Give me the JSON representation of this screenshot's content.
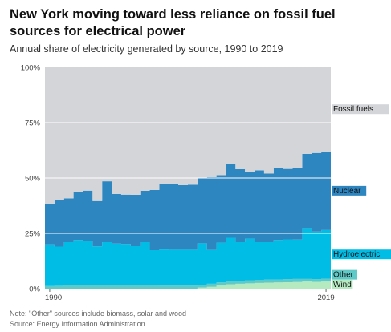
{
  "header": {
    "title": "New York moving toward less reliance on fossil fuel sources for electrical power",
    "subtitle": "Annual share of electricity generated by source, 1990 to 2019"
  },
  "footer": {
    "note": "Note: \"Other\" sources include biomass, solar and wood",
    "source": "Source: Energy Information Administration"
  },
  "colors": {
    "fossil": "#d4d5d8",
    "nuclear": "#2e86c1",
    "hydro": "#00bde6",
    "other": "#5ec9c6",
    "wind": "#b5e9c0"
  },
  "chart_data": {
    "type": "area",
    "stacking": "step",
    "x": [
      1990,
      1991,
      1992,
      1993,
      1994,
      1995,
      1996,
      1997,
      1998,
      1999,
      2000,
      2001,
      2002,
      2003,
      2004,
      2005,
      2006,
      2007,
      2008,
      2009,
      2010,
      2011,
      2012,
      2013,
      2014,
      2015,
      2016,
      2017,
      2018,
      2019
    ],
    "ylim": [
      0,
      100
    ],
    "y_ticks": [
      "0%",
      "25%",
      "50%",
      "75%",
      "100%"
    ],
    "x_tick_labels": [
      "1990",
      "2019"
    ],
    "series": [
      {
        "name": "Wind",
        "key": "wind",
        "values": [
          0,
          0,
          0,
          0,
          0,
          0,
          0,
          0,
          0,
          0,
          0,
          0,
          0,
          0,
          0,
          0,
          0.5,
          0.8,
          1.4,
          2.0,
          2.2,
          2.4,
          2.6,
          2.7,
          2.8,
          2.9,
          3.0,
          3.2,
          3.1,
          3.2
        ]
      },
      {
        "name": "Other",
        "key": "other",
        "values": [
          1.2,
          1.3,
          1.5,
          1.5,
          1.6,
          1.5,
          1.6,
          1.5,
          1.5,
          1.6,
          1.5,
          1.5,
          1.4,
          1.4,
          1.4,
          1.4,
          1.3,
          1.4,
          1.4,
          1.3,
          1.3,
          1.4,
          1.4,
          1.4,
          1.3,
          1.4,
          1.4,
          1.2,
          1.2,
          1.3
        ]
      },
      {
        "name": "Hydroelectric",
        "key": "hydro",
        "values": [
          18.8,
          17.7,
          19.5,
          20.5,
          19.9,
          17.6,
          19.4,
          18.9,
          18.7,
          17.6,
          19.5,
          15.9,
          16.3,
          16.2,
          16.2,
          16.2,
          18.7,
          15.3,
          18.0,
          19.7,
          17.5,
          18.8,
          17.0,
          16.9,
          17.9,
          18.0,
          17.8,
          23.0,
          21.5,
          22.0
        ]
      },
      {
        "name": "Nuclear",
        "key": "nuclear",
        "values": [
          18.2,
          21.0,
          19.8,
          21.8,
          22.8,
          20.5,
          27.5,
          22.4,
          22.3,
          23.2,
          23.2,
          27.2,
          29.5,
          29.6,
          29.2,
          29.3,
          29.5,
          32.9,
          30.5,
          33.5,
          33.0,
          30.1,
          32.5,
          31.0,
          32.5,
          31.8,
          32.5,
          33.5,
          35.5,
          35.5
        ]
      },
      {
        "name": "Fossil fuels",
        "key": "fossil",
        "values": [
          61.8,
          60.0,
          59.2,
          56.2,
          55.7,
          60.4,
          51.5,
          57.2,
          57.5,
          57.6,
          55.8,
          55.4,
          52.8,
          52.8,
          53.2,
          53.1,
          50.0,
          49.6,
          48.7,
          43.5,
          46.0,
          47.3,
          46.5,
          48.0,
          45.5,
          45.9,
          45.3,
          39.1,
          38.7,
          38.0
        ]
      }
    ],
    "label_order": [
      "fossil",
      "nuclear",
      "hydro",
      "other",
      "wind"
    ]
  }
}
